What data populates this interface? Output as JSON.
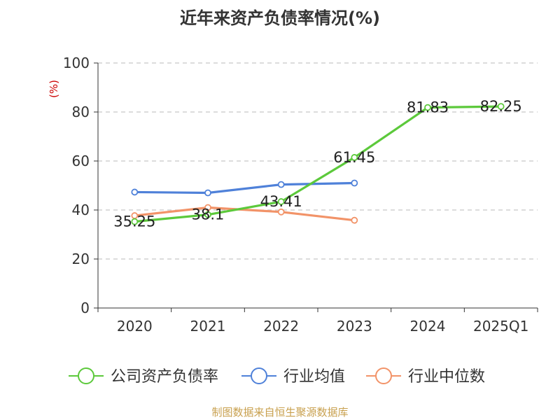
{
  "chart_data": {
    "type": "line",
    "title": "近年来资产负债率情况(%)",
    "ylabel": "(%)",
    "xlabel": "",
    "ylim": [
      0,
      100
    ],
    "yticks": [
      0,
      20,
      40,
      60,
      80,
      100
    ],
    "grid": true,
    "legend_position": "bottom",
    "categories": [
      "2020",
      "2021",
      "2022",
      "2023",
      "2024",
      "2025Q1"
    ],
    "series": [
      {
        "name": "公司资产负债率",
        "color": "#5cc93b",
        "values": [
          35.25,
          38.1,
          43.41,
          61.45,
          81.83,
          82.25
        ],
        "labels": [
          "35.25",
          "38.1",
          "43.41",
          "61.45",
          "81.83",
          "82.25"
        ]
      },
      {
        "name": "行业均值",
        "color": "#4f81d9",
        "values": [
          47.3,
          47.0,
          50.4,
          51.0,
          null,
          null
        ],
        "labels": []
      },
      {
        "name": "行业中位数",
        "color": "#f29368",
        "values": [
          37.7,
          41.0,
          39.2,
          35.8,
          null,
          null
        ],
        "labels": []
      }
    ],
    "source": "制图数据来自恒生聚源数据库"
  }
}
